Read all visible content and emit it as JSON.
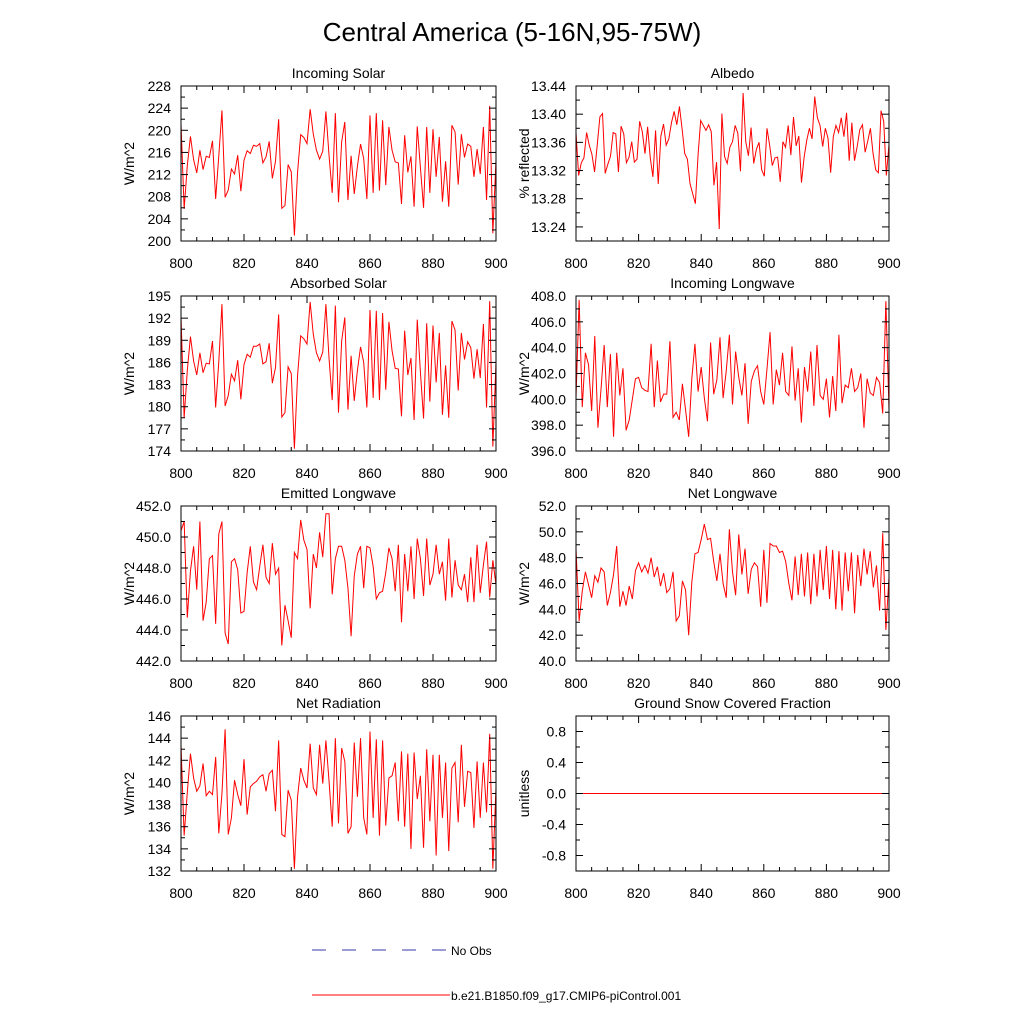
{
  "figure_title": "Central America (5-16N,95-75W)",
  "legend": {
    "obs_label": "No Obs",
    "obs_color": "#3a3aa8",
    "model_label": "b.e21.B1850.f09_g17.CMIP6-piControl.001",
    "model_color": "#ff0000"
  },
  "chart_data": [
    {
      "type": "line",
      "title": "Incoming Solar",
      "ylabel": "W/m^2",
      "xlim": [
        800,
        900
      ],
      "xticks": [
        800,
        820,
        840,
        860,
        880,
        900
      ],
      "ylim": [
        200,
        228
      ],
      "yticks": [
        200,
        204,
        208,
        212,
        216,
        220,
        224,
        228
      ],
      "ytick_decimals": 0,
      "x_start": 800,
      "series": [
        {
          "name": "b.e21.B1850.f09_g17.CMIP6-piControl.001",
          "color": "#ff0000",
          "values": [
            221.2,
            205.8,
            213.6,
            218.9,
            214.7,
            212.3,
            216.4,
            212.9,
            215.3,
            215.1,
            218.1,
            207.6,
            215.4,
            223.6,
            207.9,
            209.2,
            213.0,
            212.1,
            215.5,
            209.0,
            214.6,
            216.3,
            215.8,
            217.3,
            217.1,
            217.6,
            214.1,
            215.2,
            218.0,
            211.3,
            214.4,
            222.0,
            205.9,
            206.4,
            213.8,
            212.5,
            201.0,
            212.4,
            219.2,
            218.7,
            217.6,
            223.8,
            219.3,
            216.4,
            214.8,
            216.2,
            223.4,
            215.4,
            208.7,
            223.1,
            207.0,
            217.9,
            221.5,
            207.4,
            215.4,
            208.5,
            213.5,
            217.5,
            214.9,
            207.6,
            222.7,
            208.7,
            223.1,
            209.1,
            221.8,
            210.1,
            220.6,
            216.4,
            214.3,
            214.1,
            206.7,
            219.1,
            212.4,
            215.3,
            206.2,
            220.7,
            213.3,
            206.0,
            220.6,
            208.7,
            220.2,
            211.6,
            218.8,
            207.1,
            214.4,
            206.2,
            220.9,
            219.7,
            210.2,
            219.3,
            215.1,
            217.5,
            217.1,
            211.6,
            216.6,
            212.1,
            220.6,
            207.4,
            224.4,
            201.4,
            214.7
          ]
        }
      ]
    },
    {
      "type": "line",
      "title": "Albedo",
      "ylabel": "% reflected",
      "xlim": [
        800,
        900
      ],
      "xticks": [
        800,
        820,
        840,
        860,
        880,
        900
      ],
      "ylim": [
        13.22,
        13.44
      ],
      "yticks": [
        13.24,
        13.28,
        13.32,
        13.36,
        13.4,
        13.44
      ],
      "ytick_decimals": 2,
      "x_start": 800,
      "series": [
        {
          "name": "b.e21.B1850.f09_g17.CMIP6-piControl.001",
          "color": "#ff0000",
          "values": [
            13.374,
            13.313,
            13.331,
            13.338,
            13.374,
            13.356,
            13.343,
            13.318,
            13.356,
            13.396,
            13.401,
            13.316,
            13.329,
            13.34,
            13.374,
            13.372,
            13.318,
            13.383,
            13.372,
            13.331,
            13.339,
            13.361,
            13.332,
            13.336,
            13.39,
            13.375,
            13.344,
            13.382,
            13.338,
            13.311,
            13.377,
            13.301,
            13.369,
            13.386,
            13.356,
            13.365,
            13.388,
            13.404,
            13.385,
            13.411,
            13.379,
            13.344,
            13.336,
            13.301,
            13.287,
            13.273,
            13.341,
            13.391,
            13.384,
            13.377,
            13.385,
            13.375,
            13.299,
            13.332,
            13.237,
            13.401,
            13.34,
            13.33,
            13.353,
            13.361,
            13.384,
            13.373,
            13.319,
            13.43,
            13.361,
            13.341,
            13.381,
            13.33,
            13.35,
            13.36,
            13.321,
            13.312,
            13.38,
            13.356,
            13.327,
            13.338,
            13.339,
            13.304,
            13.361,
            13.353,
            13.384,
            13.342,
            13.396,
            13.355,
            13.369,
            13.303,
            13.339,
            13.363,
            13.38,
            13.365,
            13.425,
            13.395,
            13.384,
            13.354,
            13.38,
            13.366,
            13.317,
            13.368,
            13.384,
            13.374,
            13.395,
            13.368,
            13.402,
            13.334,
            13.388,
            13.334,
            13.354,
            13.378,
            13.385,
            13.346,
            13.362,
            13.38,
            13.344,
            13.321,
            13.317,
            13.405,
            13.39,
            13.313,
            13.357
          ]
        }
      ]
    },
    {
      "type": "line",
      "title": "Absorbed Solar",
      "ylabel": "W/m^2",
      "xlim": [
        800,
        900
      ],
      "xticks": [
        800,
        820,
        840,
        860,
        880,
        900
      ],
      "ylim": [
        174,
        195
      ],
      "yticks": [
        174,
        177,
        180,
        183,
        186,
        189,
        192,
        195
      ],
      "ytick_decimals": 0,
      "x_start": 800,
      "series": [
        {
          "name": "b.e21.B1850.f09_g17.CMIP6-piControl.001",
          "color": "#ff0000",
          "values": [
            192.3,
            178.5,
            184.9,
            189.5,
            186.2,
            184.3,
            187.3,
            184.6,
            185.9,
            185.8,
            188.9,
            179.9,
            186.1,
            193.9,
            180.1,
            181.5,
            184.4,
            183.5,
            186.3,
            181.0,
            185.7,
            187.1,
            186.7,
            188.2,
            188.2,
            188.5,
            185.8,
            186.1,
            188.6,
            183.2,
            185.3,
            192.5,
            178.6,
            179.2,
            185.4,
            184.5,
            174.3,
            184.2,
            189.6,
            189.2,
            188.5,
            194.2,
            189.8,
            187.3,
            186.2,
            187.4,
            193.9,
            186.5,
            180.9,
            193.7,
            179.2,
            188.9,
            192.1,
            179.6,
            186.9,
            180.8,
            184.9,
            188.1,
            186.0,
            179.9,
            193.1,
            181.2,
            193.0,
            180.9,
            192.7,
            182.3,
            191.5,
            187.6,
            185.2,
            185.1,
            178.7,
            190.3,
            184.3,
            186.6,
            178.2,
            191.8,
            184.7,
            178.4,
            191.3,
            180.7,
            191.0,
            183.3,
            190.0,
            178.9,
            185.6,
            178.5,
            191.6,
            190.4,
            182.2,
            190.0,
            186.4,
            188.8,
            188.0,
            183.8,
            187.8,
            183.9,
            191.2,
            179.9,
            194.3,
            174.6,
            186.1
          ]
        }
      ]
    },
    {
      "type": "line",
      "title": "Incoming Longwave",
      "ylabel": "W/m^2",
      "xlim": [
        800,
        900
      ],
      "xticks": [
        800,
        820,
        840,
        860,
        880,
        900
      ],
      "ylim": [
        396.0,
        408.0
      ],
      "yticks": [
        396.0,
        398.0,
        400.0,
        402.0,
        404.0,
        406.0,
        408.0
      ],
      "ytick_decimals": 1,
      "x_start": 800,
      "series": [
        {
          "name": "b.e21.B1850.f09_g17.CMIP6-piControl.001",
          "color": "#ff0000",
          "values": [
            400.1,
            407.7,
            399.4,
            403.6,
            402.7,
            399.1,
            404.9,
            397.8,
            400.8,
            404.2,
            399.4,
            403.5,
            397.1,
            403.6,
            400.3,
            402.4,
            397.6,
            398.4,
            400.0,
            401.6,
            401.7,
            400.9,
            400.7,
            400.6,
            404.3,
            399.4,
            403.0,
            399.8,
            400.4,
            400.4,
            404.5,
            398.6,
            399.0,
            398.4,
            401.2,
            399.2,
            397.1,
            401.6,
            404.3,
            400.6,
            402.5,
            400.1,
            398.3,
            404.4,
            400.4,
            401.5,
            404.8,
            400.1,
            402.2,
            405.0,
            399.6,
            403.7,
            401.7,
            400.3,
            402.8,
            398.1,
            401.4,
            402.2,
            402.6,
            400.6,
            399.6,
            402.3,
            405.2,
            399.6,
            402.3,
            401.1,
            403.6,
            400.6,
            400.3,
            404.1,
            399.9,
            402.4,
            398.2,
            402.5,
            400.6,
            403.7,
            399.5,
            404.2,
            400.3,
            400.0,
            401.6,
            398.6,
            401.8,
            399.1,
            405.0,
            399.7,
            401.1,
            400.9,
            402.4,
            400.6,
            400.9,
            402.0,
            397.8,
            401.6,
            400.5,
            400.3,
            401.7,
            401.3,
            398.9,
            407.6,
            399.2
          ]
        }
      ]
    },
    {
      "type": "line",
      "title": "Emitted Longwave",
      "ylabel": "W/m^2",
      "xlim": [
        800,
        900
      ],
      "xticks": [
        800,
        820,
        840,
        860,
        880,
        900
      ],
      "ylim": [
        442.0,
        452.0
      ],
      "yticks": [
        442.0,
        444.0,
        446.0,
        448.0,
        450.0,
        452.0
      ],
      "ytick_decimals": 1,
      "x_start": 800,
      "series": [
        {
          "name": "b.e21.B1850.f09_g17.CMIP6-piControl.001",
          "color": "#ff0000",
          "values": [
            450.4,
            451.0,
            444.8,
            447.8,
            449.4,
            446.6,
            451.0,
            444.6,
            445.8,
            448.6,
            448.8,
            444.4,
            450.2,
            451.0,
            443.8,
            443.1,
            448.4,
            448.6,
            447.9,
            445.1,
            445.2,
            447.7,
            449.4,
            447.1,
            446.6,
            448.1,
            449.5,
            447.4,
            447.0,
            449.6,
            447.6,
            448.0,
            443.0,
            445.6,
            444.6,
            443.5,
            449.0,
            448.6,
            451.1,
            449.8,
            449.2,
            445.4,
            448.9,
            448.0,
            450.3,
            448.7,
            451.5,
            451.5,
            446.3,
            448.6,
            449.4,
            449.4,
            448.5,
            446.7,
            443.6,
            447.5,
            448.9,
            449.4,
            446.7,
            449.4,
            449.3,
            448.1,
            446.0,
            446.4,
            446.5,
            447.7,
            449.3,
            448.6,
            446.5,
            449.5,
            444.5,
            448.9,
            446.5,
            449.4,
            446.0,
            449.9,
            448.6,
            446.2,
            449.9,
            446.9,
            447.6,
            449.5,
            447.6,
            448.4,
            445.9,
            449.9,
            446.1,
            448.5,
            446.9,
            446.6,
            447.6,
            445.8,
            448.7,
            445.8,
            449.5,
            446.4,
            448.2,
            449.7,
            446.1,
            448.5,
            446.9
          ]
        }
      ]
    },
    {
      "type": "line",
      "title": "Net Longwave",
      "ylabel": "W/m^2",
      "xlim": [
        800,
        900
      ],
      "xticks": [
        800,
        820,
        840,
        860,
        880,
        900
      ],
      "ylim": [
        40.0,
        52.0
      ],
      "yticks": [
        40.0,
        42.0,
        44.0,
        46.0,
        48.0,
        50.0,
        52.0
      ],
      "ytick_decimals": 1,
      "x_start": 800,
      "series": [
        {
          "name": "b.e21.B1850.f09_g17.CMIP6-piControl.001",
          "color": "#ff0000",
          "values": [
            48.7,
            43.1,
            45.4,
            46.9,
            45.9,
            44.9,
            46.6,
            46.1,
            47.2,
            46.9,
            44.3,
            45.3,
            46.7,
            48.9,
            44.2,
            45.4,
            44.3,
            45.8,
            44.8,
            47.0,
            47.6,
            46.9,
            47.4,
            46.8,
            48.0,
            46.5,
            47.3,
            45.8,
            46.8,
            45.3,
            45.6,
            46.9,
            43.1,
            43.5,
            46.2,
            45.5,
            42.0,
            46.1,
            48.3,
            48.4,
            49.4,
            50.6,
            49.4,
            49.5,
            47.7,
            46.2,
            48.3,
            46.0,
            44.9,
            50.2,
            46.9,
            45.1,
            49.8,
            46.7,
            48.7,
            45.2,
            47.1,
            47.6,
            47.3,
            44.2,
            48.6,
            44.5,
            49.1,
            48.9,
            48.9,
            48.4,
            48.5,
            47.7,
            46.0,
            44.7,
            48.1,
            45.1,
            48.3,
            45.0,
            48.4,
            44.4,
            48.3,
            45.0,
            48.6,
            45.5,
            48.9,
            44.8,
            48.6,
            44.0,
            48.5,
            43.9,
            48.4,
            45.4,
            48.4,
            43.7,
            48.2,
            45.8,
            48.7,
            46.7,
            48.5,
            45.7,
            47.4,
            43.9,
            49.9,
            42.4,
            46.5
          ]
        }
      ]
    },
    {
      "type": "line",
      "title": "Net Radiation",
      "ylabel": "W/m^2",
      "xlim": [
        800,
        900
      ],
      "xticks": [
        800,
        820,
        840,
        860,
        880,
        900
      ],
      "ylim": [
        132,
        146
      ],
      "yticks": [
        132,
        134,
        136,
        138,
        140,
        142,
        144,
        146
      ],
      "ytick_decimals": 0,
      "x_start": 800,
      "series": [
        {
          "name": "b.e21.B1850.f09_g17.CMIP6-piControl.001",
          "color": "#ff0000",
          "values": [
            143.4,
            135.2,
            139.1,
            142.6,
            140.4,
            139.2,
            139.7,
            141.7,
            138.8,
            139.2,
            138.9,
            142.3,
            135.4,
            139.0,
            144.8,
            135.3,
            136.8,
            140.2,
            138.9,
            137.9,
            142.1,
            137.1,
            139.6,
            139.9,
            140.1,
            140.5,
            140.7,
            139.2,
            140.8,
            141.1,
            137.4,
            143.8,
            135.3,
            135.1,
            139.3,
            138.4,
            132.2,
            138.7,
            141.3,
            140.2,
            139.5,
            143.5,
            139.5,
            138.9,
            143.4,
            139.9,
            143.8,
            140.1,
            136.0,
            144.0,
            136.3,
            143.1,
            141.9,
            135.4,
            136.0,
            143.6,
            138.7,
            144.0,
            136.8,
            135.3,
            144.6,
            136.8,
            143.9,
            135.2,
            143.8,
            136.1,
            140.4,
            140.6,
            141.8,
            136.5,
            142.8,
            136.0,
            142.6,
            134.0,
            142.7,
            138.5,
            140.6,
            134.1,
            143.0,
            136.5,
            142.5,
            133.4,
            142.5,
            136.8,
            141.8,
            133.8,
            141.3,
            141.8,
            136.4,
            143.4,
            137.8,
            141.0,
            140.9,
            135.9,
            141.9,
            136.8,
            141.8,
            137.3,
            144.4,
            132.2,
            139.6
          ]
        }
      ]
    },
    {
      "type": "line",
      "title": "Ground Snow Covered Fraction",
      "ylabel": "unitless",
      "xlim": [
        800,
        900
      ],
      "xticks": [
        800,
        820,
        840,
        860,
        880,
        900
      ],
      "ylim": [
        -1.0,
        1.0
      ],
      "yticks": [
        -0.8,
        -0.4,
        0.0,
        0.4,
        0.8
      ],
      "ytick_decimals": 1,
      "x_start": 800,
      "series": [
        {
          "name": "b.e21.B1850.f09_g17.CMIP6-piControl.001",
          "color": "#ff0000",
          "values": [
            0.0,
            0.0
          ]
        }
      ],
      "series_x": [
        800,
        900
      ]
    }
  ]
}
